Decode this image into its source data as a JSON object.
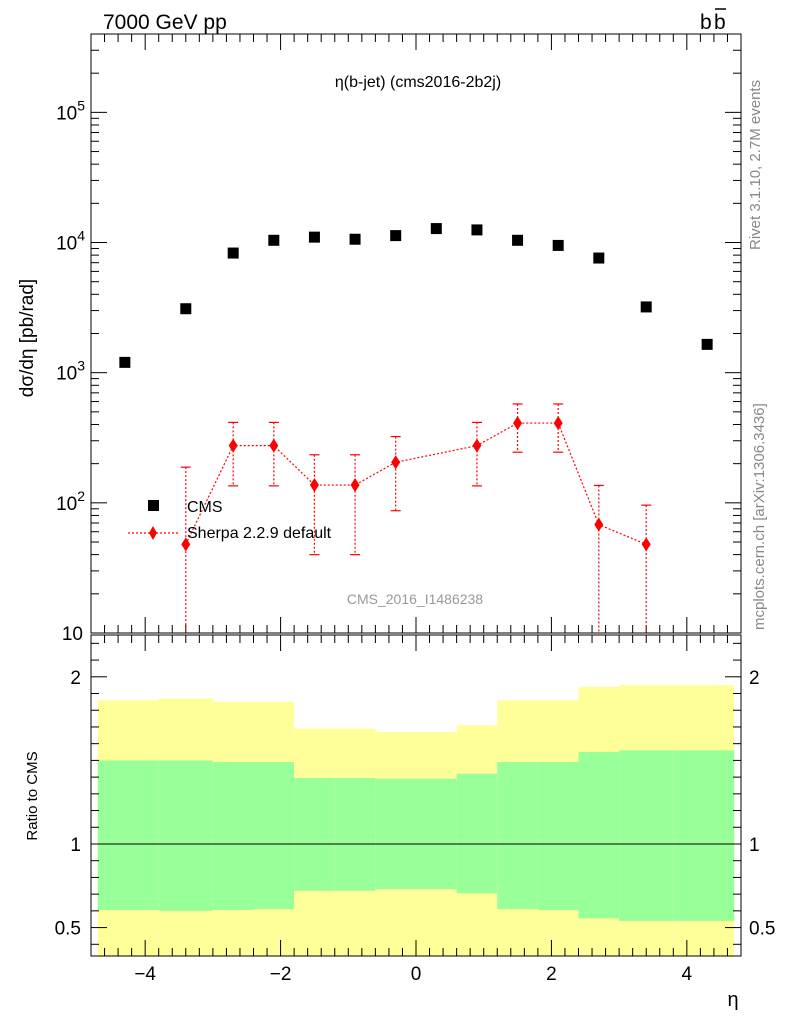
{
  "header": {
    "left": "7000 GeV pp",
    "right_base": "b",
    "right_bar": "b",
    "side_top": "Rivet 3.1.10,  2.7M events",
    "side_bottom": "mcplots.cern.ch [arXiv:1306.3436]",
    "analysis": "CMS_2016_I1486238"
  },
  "chart_data": [
    {
      "type": "scatter",
      "title": "η(b-jet) (cms2016-2b2j)",
      "ylabel": "dσ/dη [pb/rad]",
      "yscale": "log",
      "xlim": [
        -4.8,
        4.8
      ],
      "ylim": [
        10,
        400000
      ],
      "ytick_labels": [
        {
          "v": 10,
          "label": "10",
          "sup": ""
        },
        {
          "v": 100,
          "label": "10",
          "sup": "2"
        },
        {
          "v": 1000,
          "label": "10",
          "sup": "3"
        },
        {
          "v": 10000,
          "label": "10",
          "sup": "4"
        },
        {
          "v": 100000,
          "label": "10",
          "sup": "5"
        }
      ],
      "legend_position": "left, lower half",
      "series": [
        {
          "name": "CMS",
          "color": "#000000",
          "marker": "square",
          "x": [
            -4.3,
            -3.4,
            -2.7,
            -2.1,
            -1.5,
            -0.9,
            -0.3,
            0.3,
            0.9,
            1.5,
            2.1,
            2.7,
            3.4,
            4.3
          ],
          "y": [
            1200,
            3100,
            8300,
            10400,
            11000,
            10600,
            11300,
            12800,
            12500,
            10400,
            9500,
            7600,
            3200,
            1650
          ]
        },
        {
          "name": "Sherpa 2.2.9 default",
          "color": "#ff0000",
          "marker": "diamond",
          "line": "dotted",
          "x": [
            -3.4,
            -2.7,
            -2.1,
            -1.5,
            -0.9,
            -0.3,
            0.9,
            1.5,
            2.1,
            2.7,
            3.4
          ],
          "y": [
            48,
            275,
            275,
            137,
            137,
            205,
            275,
            410,
            410,
            68,
            48
          ],
          "yerr_low": [
            48,
            140,
            140,
            97,
            97,
            118,
            140,
            165,
            165,
            68,
            48
          ],
          "yerr_high": [
            140,
            140,
            140,
            97,
            97,
            118,
            140,
            165,
            165,
            68,
            48
          ]
        }
      ]
    },
    {
      "type": "area",
      "xlabel": "η",
      "ylabel": "Ratio to CMS",
      "xlim": [
        -4.8,
        4.8
      ],
      "ylim": [
        0.33,
        2.25
      ],
      "xticks": [
        -4,
        -2,
        0,
        2,
        4
      ],
      "xtick_labels": [
        "−4",
        "−2",
        "0",
        "2",
        "4"
      ],
      "yticks": [
        0.5,
        1,
        2
      ],
      "ytick_labels": [
        "0.5",
        "1",
        "2"
      ],
      "reference_line": 1,
      "bins": [
        -4.7,
        -3.8,
        -3.0,
        -2.4,
        -1.8,
        -1.2,
        -0.6,
        0.6,
        1.2,
        1.8,
        2.4,
        3.0,
        3.8,
        4.7
      ],
      "band_stat": {
        "color": "#99ff99",
        "low": [
          0.605,
          0.6,
          0.605,
          0.61,
          0.72,
          0.72,
          0.73,
          0.705,
          0.61,
          0.605,
          0.555,
          0.54,
          0.54
        ],
        "high": [
          1.5,
          1.5,
          1.49,
          1.49,
          1.395,
          1.395,
          1.39,
          1.42,
          1.49,
          1.49,
          1.55,
          1.56,
          1.56
        ]
      },
      "band_total": {
        "color": "#ffff99",
        "low": [
          0.33,
          0.33,
          0.33,
          0.33,
          0.33,
          0.33,
          0.33,
          0.33,
          0.33,
          0.33,
          0.33,
          0.33,
          0.33
        ],
        "high": [
          1.86,
          1.87,
          1.85,
          1.85,
          1.69,
          1.69,
          1.67,
          1.71,
          1.86,
          1.86,
          1.94,
          1.95,
          1.95
        ]
      }
    }
  ]
}
